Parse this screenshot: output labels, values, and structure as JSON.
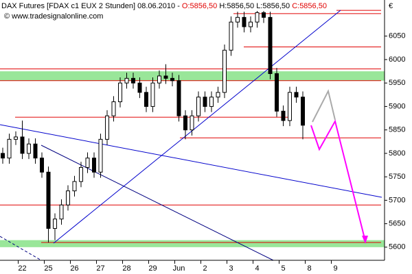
{
  "chart_data": {
    "type": "candlestick",
    "title": "DAX Futures [FDAX c1 EUX  2 Stunden] 08.06.2010 -",
    "ohlc_labels": {
      "open": "O:5856,50",
      "high": "H:5856,50",
      "low": "L:5856,50",
      "close": "C:5856,50"
    },
    "watermark": "© www.tradesignalonline.com",
    "currency": "€",
    "categories": [
      null,
      null,
      null,
      "22",
      null,
      null,
      null,
      "25",
      null,
      null,
      null,
      "26",
      null,
      null,
      null,
      "27",
      null,
      null,
      null,
      "28",
      null,
      null,
      null,
      "29",
      null,
      null,
      null,
      "Jun",
      null,
      null,
      null,
      "2",
      null,
      null,
      null,
      "3",
      null,
      null,
      null,
      "4",
      null,
      null,
      null,
      "5",
      null,
      null,
      null,
      "8",
      null,
      null,
      null,
      "9",
      null,
      null,
      null,
      null,
      null,
      null
    ],
    "open": [
      5800,
      5790,
      5830,
      5835,
      5800,
      5820,
      5790,
      5760,
      5640,
      5660,
      5690,
      5720,
      5740,
      5770,
      5790,
      5760,
      5830,
      5880,
      5910,
      5950,
      5960,
      5950,
      5930,
      5900,
      5950,
      5965,
      5960,
      5955,
      5880,
      5850,
      5880,
      5920,
      5900,
      5920,
      5930,
      6020,
      6080,
      6090,
      6070,
      6080,
      6100,
      6090,
      5970,
      5890,
      5870,
      5930,
      5920,
      null,
      null,
      null,
      null,
      null,
      null,
      null,
      null,
      null,
      null,
      null
    ],
    "high": [
      5812,
      5842,
      5847,
      5870,
      5832,
      5832,
      5802,
      5772,
      5672,
      5702,
      5732,
      5752,
      5782,
      5802,
      5802,
      5842,
      5892,
      5922,
      5962,
      5972,
      5972,
      5962,
      5942,
      5962,
      5977,
      5990,
      5972,
      5967,
      5892,
      5892,
      5932,
      5932,
      5932,
      5942,
      6032,
      6092,
      6102,
      6102,
      6092,
      6112,
      6112,
      6102,
      5982,
      5902,
      5942,
      5942,
      5932,
      null,
      null,
      null,
      null,
      null,
      null,
      null,
      null,
      null,
      null,
      null
    ],
    "low": [
      5778,
      5778,
      5818,
      5788,
      5788,
      5778,
      5748,
      5610,
      5615,
      5648,
      5678,
      5708,
      5728,
      5758,
      5748,
      5748,
      5818,
      5868,
      5898,
      5938,
      5938,
      5918,
      5888,
      5888,
      5938,
      5948,
      5943,
      5868,
      5830,
      5838,
      5868,
      5888,
      5888,
      5908,
      5918,
      6008,
      6068,
      6058,
      6058,
      6068,
      6078,
      5958,
      5878,
      5858,
      5858,
      5908,
      5830,
      null,
      null,
      null,
      null,
      null,
      null,
      null,
      null,
      null,
      null,
      null
    ],
    "close": [
      5790,
      5830,
      5835,
      5800,
      5820,
      5790,
      5760,
      5640,
      5660,
      5690,
      5720,
      5740,
      5770,
      5790,
      5760,
      5830,
      5880,
      5910,
      5950,
      5960,
      5950,
      5930,
      5900,
      5950,
      5965,
      5960,
      5955,
      5880,
      5850,
      5880,
      5920,
      5900,
      5920,
      5930,
      6020,
      6080,
      6090,
      6070,
      6080,
      6100,
      6090,
      5970,
      5890,
      5870,
      5930,
      5920,
      5860,
      null,
      null,
      null,
      null,
      null,
      null,
      null,
      null,
      null,
      null,
      null
    ],
    "levels": [
      6105,
      6098,
      6027,
      5980,
      5955,
      5877,
      5833,
      5690,
      5610
    ],
    "level_color": "#e00000",
    "zones": [
      [
        5955,
        5975
      ],
      [
        5600,
        5615
      ]
    ],
    "zone_color": "#99e699",
    "ylim": [
      5572,
      6127
    ],
    "yticks": [
      5600,
      5650,
      5700,
      5750,
      5800,
      5850,
      5900,
      5950,
      6000,
      6050
    ]
  }
}
